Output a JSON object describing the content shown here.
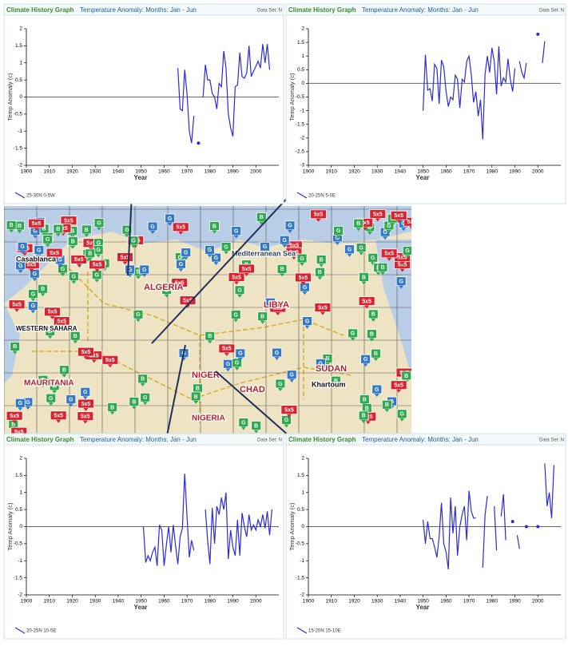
{
  "chart_data": [
    {
      "type": "line",
      "header": "Climate History Graph",
      "title": "Temperature Anomaly: Months: Jan - Jun",
      "dataset_label": "Data Set: N",
      "xlabel": "Year",
      "ylabel": "Temp Anomaly (c)",
      "x": [
        1966,
        1967,
        1968,
        1969,
        1970,
        1971,
        1972,
        1973,
        1974,
        1975,
        1976,
        1977,
        1978,
        1979,
        1980,
        1981,
        1982,
        1983,
        1984,
        1985,
        1986,
        1987,
        1988,
        1989,
        1990,
        1991,
        1992,
        1993,
        1994,
        1995,
        1996,
        1997,
        1998,
        1999,
        2000,
        2001,
        2002,
        2003,
        2004,
        2005,
        2006
      ],
      "series": [
        {
          "name": "25-30N 0-5W",
          "color": "#2b2bd6",
          "values": [
            0.85,
            -0.35,
            -0.4,
            0.8,
            0.1,
            -1.0,
            -1.35,
            -0.55,
            null,
            -1.35,
            null,
            0.0,
            0.95,
            0.5,
            0.5,
            0.1,
            0.0,
            -0.35,
            0.4,
            0.3,
            1.35,
            0.85,
            -0.5,
            -0.9,
            -1.15,
            0.3,
            0.35,
            1.3,
            0.6,
            0.55,
            0.7,
            1.5,
            0.6,
            0.75,
            0.9,
            1.05,
            0.85,
            1.55,
            1.0,
            1.55,
            0.8
          ]
        }
      ],
      "xlim": [
        1900,
        2010
      ],
      "xticks": [
        1900,
        1910,
        1920,
        1930,
        1940,
        1950,
        1960,
        1970,
        1980,
        1990,
        2000
      ],
      "ylim": [
        -2,
        2
      ],
      "yticks": [
        -2,
        -1.5,
        -1,
        -0.5,
        0,
        0.5,
        1,
        1.5,
        2
      ]
    },
    {
      "type": "line",
      "header": "Climate History Graph",
      "title": "Temperature Anomaly: Months: Jan - Jun",
      "dataset_label": "Data Set: N",
      "xlabel": "Year",
      "ylabel": "Temp Anomaly (c)",
      "x": [
        1950,
        1951,
        1952,
        1953,
        1954,
        1955,
        1956,
        1957,
        1958,
        1959,
        1960,
        1961,
        1962,
        1963,
        1964,
        1965,
        1966,
        1967,
        1968,
        1969,
        1970,
        1971,
        1972,
        1973,
        1974,
        1975,
        1976,
        1977,
        1978,
        1979,
        1980,
        1981,
        1982,
        1983,
        1984,
        1985,
        1986,
        1987,
        1988,
        1989,
        1990,
        1991,
        1992,
        1993,
        1994,
        1995,
        1996,
        1997,
        1998,
        1999,
        2000,
        2001,
        2002,
        2003
      ],
      "series": [
        {
          "name": "20-25N 5-0E",
          "color": "#2b2bd6",
          "values": [
            -1.0,
            1.05,
            -0.25,
            -0.2,
            -0.65,
            0.7,
            0.55,
            -0.75,
            0.85,
            0.6,
            -0.3,
            -0.85,
            -0.5,
            -0.6,
            0.3,
            0.15,
            -0.9,
            0.15,
            0.05,
            0.8,
            1.0,
            0.3,
            -0.7,
            -0.3,
            -1.2,
            -0.6,
            -2.05,
            0.35,
            1.0,
            0.4,
            1.3,
            0.8,
            -0.4,
            1.35,
            -0.1,
            0.2,
            0.05,
            0.9,
            0.15,
            -0.3,
            0.55,
            null,
            0.8,
            0.4,
            0.2,
            0.75,
            null,
            null,
            null,
            null,
            1.8,
            null,
            0.75,
            1.55
          ]
        }
      ],
      "xlim": [
        1900,
        2010
      ],
      "xticks": [
        1900,
        1910,
        1920,
        1930,
        1940,
        1950,
        1960,
        1970,
        1980,
        1990,
        2000
      ],
      "ylim": [
        -3,
        2
      ],
      "yticks": [
        -3,
        -2.5,
        -2,
        -1.5,
        -1,
        -0.5,
        0,
        0.5,
        1,
        1.5,
        2
      ]
    },
    {
      "type": "line",
      "header": "Climate History Graph",
      "title": "Temperature Anomaly: Months: Jan - Jun",
      "dataset_label": "Data Set: N",
      "xlabel": "Year",
      "ylabel": "Temp Anomaly (c)",
      "x": [
        1951,
        1952,
        1953,
        1954,
        1955,
        1956,
        1957,
        1958,
        1959,
        1960,
        1961,
        1962,
        1963,
        1964,
        1965,
        1966,
        1967,
        1968,
        1969,
        1970,
        1971,
        1972,
        1973,
        1974,
        1975,
        1976,
        1977,
        1978,
        1979,
        1980,
        1981,
        1982,
        1983,
        1984,
        1985,
        1986,
        1987,
        1988,
        1989,
        1990,
        1991,
        1992,
        1993,
        1994,
        1995,
        1996,
        1997,
        1998,
        1999,
        2000,
        2001,
        2002,
        2003,
        2004,
        2005,
        2006,
        2007
      ],
      "series": [
        {
          "name": "20-25N 10-5E",
          "color": "#2b2bd6",
          "values": [
            0.0,
            -1.05,
            -0.85,
            -1.0,
            -0.75,
            -0.6,
            -1.15,
            0.05,
            -0.1,
            -1.15,
            -0.55,
            0.0,
            -0.75,
            0.05,
            -0.55,
            -1.1,
            -0.3,
            -0.05,
            1.55,
            0.3,
            -0.9,
            -0.4,
            -0.7,
            null,
            null,
            null,
            null,
            0.5,
            -0.4,
            -1.1,
            0.55,
            -0.5,
            0.6,
            0.35,
            0.85,
            0.5,
            1.0,
            -0.95,
            -0.1,
            -0.6,
            -0.85,
            0.2,
            -0.85,
            0.4,
            0.0,
            -0.3,
            0.35,
            -0.1,
            0.05,
            -0.1,
            0.2,
            0.0,
            0.35,
            -0.05,
            0.45,
            -0.25,
            0.5
          ]
        }
      ],
      "xlim": [
        1900,
        2010
      ],
      "xticks": [
        1900,
        1910,
        1920,
        1930,
        1940,
        1950,
        1960,
        1970,
        1980,
        1990,
        2000
      ],
      "ylim": [
        -2,
        2
      ],
      "yticks": [
        -2,
        -1.5,
        -1,
        -0.5,
        0,
        0.5,
        1,
        1.5,
        2
      ]
    },
    {
      "type": "line",
      "header": "Climate History Graph",
      "title": "Temperature Anomaly: Months: Jan - Jun",
      "dataset_label": "Data Set: N",
      "xlabel": "Year",
      "ylabel": "Temp Anomaly (c)",
      "x": [
        1950,
        1951,
        1952,
        1953,
        1954,
        1955,
        1956,
        1957,
        1958,
        1959,
        1960,
        1961,
        1962,
        1963,
        1964,
        1965,
        1966,
        1967,
        1968,
        1969,
        1970,
        1971,
        1972,
        1973,
        1974,
        1975,
        1976,
        1977,
        1978,
        1979,
        1980,
        1981,
        1982,
        1983,
        1984,
        1985,
        1986,
        1987,
        1988,
        1989,
        1990,
        1991,
        1992,
        1993,
        1994,
        1995,
        1996,
        1997,
        1998,
        1999,
        2000,
        2001,
        2002,
        2003,
        2004,
        2005,
        2006,
        2007
      ],
      "series": [
        {
          "name": "15-20N 15-10E",
          "color": "#2b2bd6",
          "values": [
            0.2,
            -0.5,
            0.15,
            -0.35,
            -0.35,
            -0.6,
            -0.9,
            -0.3,
            0.7,
            -0.5,
            -0.75,
            -1.25,
            0.85,
            -0.2,
            0.6,
            -0.85,
            0.0,
            0.35,
            0.6,
            -0.4,
            1.05,
            0.45,
            0.25,
            0.25,
            null,
            null,
            -1.2,
            0.35,
            0.9,
            null,
            null,
            0.6,
            -0.7,
            null,
            0.3,
            0.95,
            -0.4,
            null,
            null,
            0.15,
            null,
            -0.25,
            -0.65,
            null,
            null,
            0.0,
            null,
            null,
            null,
            null,
            0.0,
            null,
            null,
            1.85,
            0.6,
            1.0,
            0.25,
            1.8
          ]
        }
      ],
      "xlim": [
        1900,
        2010
      ],
      "xticks": [
        1900,
        1910,
        1920,
        1930,
        1940,
        1950,
        1960,
        1970,
        1980,
        1990,
        2000
      ],
      "ylim": [
        -2,
        2
      ],
      "yticks": [
        -2,
        -1.5,
        -1,
        -0.5,
        0,
        0.5,
        1,
        1.5,
        2
      ]
    }
  ],
  "map": {
    "labels": [
      "Casablanca",
      "Mediterranean Sea",
      "ALGERIA",
      "LIBYA",
      "MAURITANIA",
      "WESTERN SAHARA",
      "NIGER",
      "CHAD",
      "SUDAN",
      "NIGERIA",
      "Khartoum"
    ],
    "marker_labels": [
      "5x5",
      "G",
      "B"
    ]
  }
}
